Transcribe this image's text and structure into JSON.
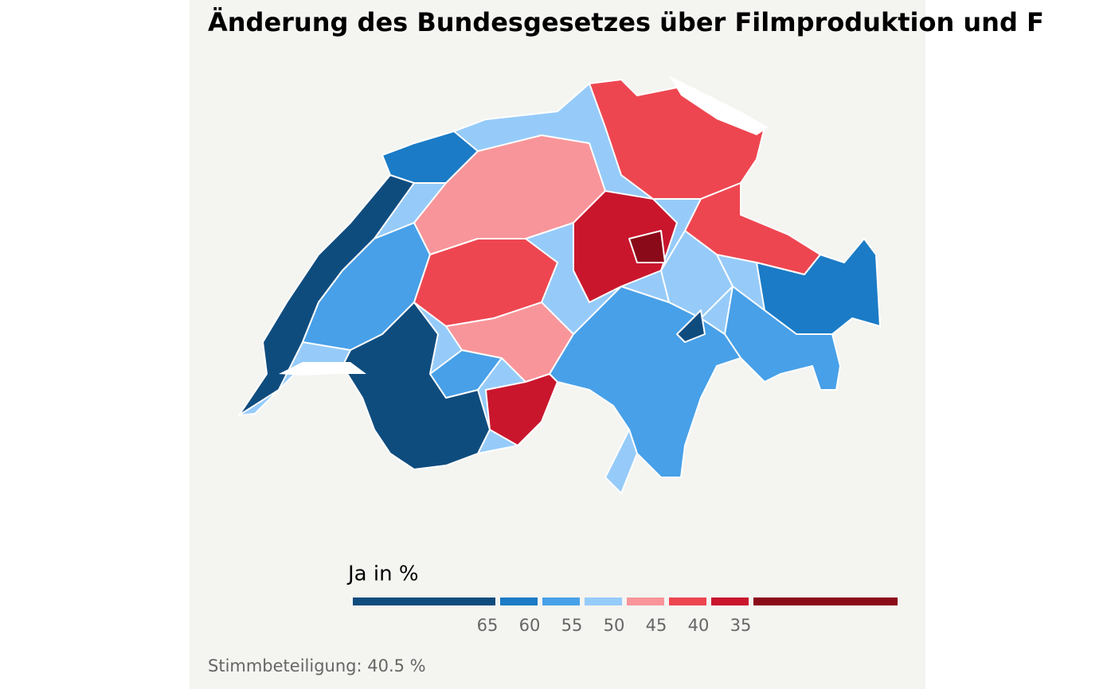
{
  "header": {
    "title": "Änderung des Bundesgesetzes über Filmproduktion und F"
  },
  "legend": {
    "title": "Ja in %",
    "breaks": [
      65,
      60,
      55,
      50,
      45,
      40,
      35
    ],
    "colors": [
      "#0f4c7e",
      "#1b7bc6",
      "#48a0e8",
      "#96cbf9",
      "#f8959a",
      "#ee4650",
      "#c9162d",
      "#8a0a19"
    ]
  },
  "caption": "Stimmbeteiligung: 40.5 %"
}
